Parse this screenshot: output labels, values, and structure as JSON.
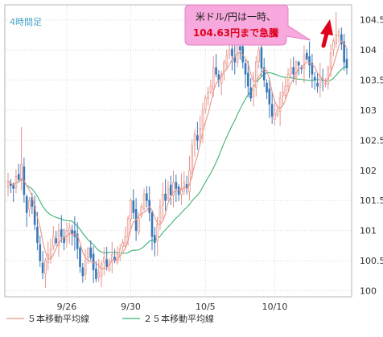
{
  "chart_data": {
    "type": "candlestick",
    "timeframe_label": "4時間足",
    "x_tick_labels": [
      "9/26",
      "9/30",
      "10/5",
      "10/10"
    ],
    "y_ticks": [
      100,
      100.5,
      101,
      101.5,
      102,
      102.5,
      103,
      103.5,
      104,
      104.5
    ],
    "ylim": [
      99.9,
      104.75
    ],
    "grid": true,
    "annotation": {
      "line1": "米ドル/円は一時、",
      "line2": "104.63円まで急騰"
    },
    "legend": {
      "placement": "bottom-left",
      "items": [
        {
          "label": "５本移動平均線",
          "color": "#e8948a"
        },
        {
          "label": "２５本移動平均線",
          "color": "#3cb371"
        }
      ]
    },
    "colors": {
      "up_candle": "#e8948a",
      "down_candle": "#3a78b8",
      "ma5": "#e8948a",
      "ma25": "#3cb371",
      "arrow": "#e0001b",
      "callout_fill": "#f7a8dd",
      "highlight_text": "#e0001b"
    },
    "closes": [
      101.82,
      101.75,
      101.7,
      101.9,
      101.85,
      102.1,
      101.6,
      101.3,
      101.5,
      101.4,
      101.1,
      100.8,
      100.5,
      100.3,
      100.5,
      100.6,
      100.7,
      100.9,
      100.8,
      101.0,
      100.9,
      100.8,
      101.0,
      101.05,
      100.95,
      100.9,
      100.7,
      100.4,
      100.25,
      100.5,
      100.7,
      100.55,
      100.35,
      100.2,
      100.3,
      100.45,
      100.55,
      100.4,
      100.5,
      100.6,
      100.5,
      100.6,
      100.7,
      100.8,
      100.9,
      101.2,
      101.5,
      101.3,
      101.0,
      101.2,
      101.4,
      101.6,
      101.5,
      101.3,
      100.9,
      100.8,
      101.1,
      101.4,
      101.6,
      101.5,
      101.7,
      101.6,
      101.8,
      101.7,
      101.6,
      101.7,
      101.8,
      101.7,
      102.0,
      102.4,
      102.6,
      102.5,
      102.7,
      103.0,
      103.2,
      103.3,
      103.4,
      103.7,
      103.6,
      103.5,
      103.6,
      103.8,
      103.9,
      104.0,
      103.9,
      103.8,
      104.1,
      104.0,
      103.8,
      103.6,
      103.4,
      103.2,
      103.4,
      103.8,
      104.0,
      103.7,
      103.5,
      103.3,
      103.1,
      102.9,
      102.95,
      103.0,
      103.2,
      103.3,
      103.4,
      103.6,
      103.7,
      103.6,
      103.8,
      103.75,
      103.7,
      103.9,
      103.85,
      103.75,
      103.6,
      103.5,
      103.4,
      103.55,
      103.5,
      103.45,
      103.7,
      103.95,
      104.15,
      104.25,
      104.3,
      104.1,
      103.8,
      103.7
    ]
  }
}
